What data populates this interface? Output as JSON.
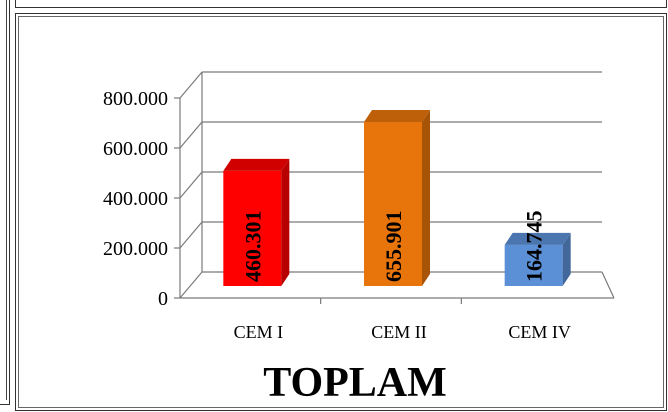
{
  "chart_data": {
    "type": "bar",
    "title": "TOPLAM",
    "categories": [
      "CEM I",
      "CEM II",
      "CEM IV"
    ],
    "values": [
      460301,
      655901,
      164745
    ],
    "value_labels": [
      "460.301",
      "655.901",
      "164.745"
    ],
    "colors": [
      "#ff0000",
      "#e8740c",
      "#5b8fd6"
    ],
    "ylim": [
      0,
      800000
    ],
    "yticks": [
      0,
      200000,
      400000,
      600000,
      800000
    ],
    "ytick_labels": [
      "0",
      "200.000",
      "400.000",
      "600.000",
      "800.000"
    ],
    "xlabel": "",
    "ylabel": "",
    "grid": true,
    "style": "3d",
    "legend": "none"
  }
}
